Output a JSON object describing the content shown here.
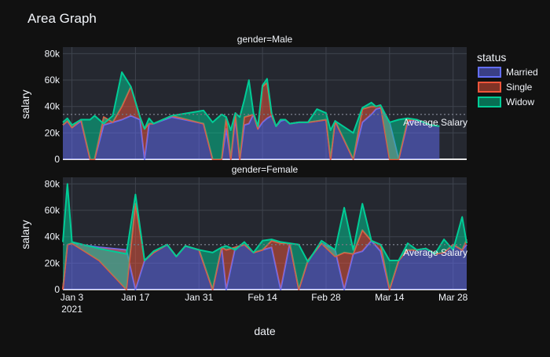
{
  "chart_data": {
    "type": "area",
    "title": "Area Graph",
    "xlabel": "date",
    "ylabel": "salary",
    "facets": [
      "gender=Male",
      "gender=Female"
    ],
    "legend_title": "status",
    "legend_position": "right",
    "grid": true,
    "ylim": [
      0,
      85000
    ],
    "xlim": [
      "2021-01-01",
      "2021-03-31"
    ],
    "x_tick_labels": [
      "Jan 3\n2021",
      "Jan 17",
      "Jan 31",
      "Feb 14",
      "Feb 28",
      "Mar 14",
      "Mar 28"
    ],
    "x_tick_dates": [
      "2021-01-03",
      "2021-01-17",
      "2021-01-31",
      "2021-02-14",
      "2021-02-28",
      "2021-03-14",
      "2021-03-28"
    ],
    "y_tick_values": [
      0,
      20000,
      40000,
      60000,
      80000
    ],
    "y_tick_labels": [
      "0",
      "20k",
      "40k",
      "60k",
      "80k"
    ],
    "reference_line": {
      "label": "Average Salary",
      "value": 34000
    },
    "series": [
      {
        "name": "Married",
        "color": "#636efa"
      },
      {
        "name": "Single",
        "color": "#ef553b"
      },
      {
        "name": "Widow",
        "color": "#00cc96"
      }
    ],
    "panels": [
      {
        "facet": "gender=Male",
        "x": [
          "2021-01-01",
          "2021-01-02",
          "2021-01-03",
          "2021-01-05",
          "2021-01-07",
          "2021-01-08",
          "2021-01-10",
          "2021-01-12",
          "2021-01-14",
          "2021-01-16",
          "2021-01-18",
          "2021-01-19",
          "2021-01-20",
          "2021-01-21",
          "2021-01-25",
          "2021-02-01",
          "2021-02-03",
          "2021-02-05",
          "2021-02-06",
          "2021-02-07",
          "2021-02-08",
          "2021-02-09",
          "2021-02-10",
          "2021-02-11",
          "2021-02-12",
          "2021-02-13",
          "2021-02-14",
          "2021-02-15",
          "2021-02-16",
          "2021-02-17",
          "2021-02-18",
          "2021-02-19",
          "2021-02-20",
          "2021-02-22",
          "2021-02-24",
          "2021-02-26",
          "2021-02-28",
          "2021-03-01",
          "2021-03-02",
          "2021-03-06",
          "2021-03-08",
          "2021-03-10",
          "2021-03-11",
          "2021-03-12",
          "2021-03-14",
          "2021-03-16",
          "2021-03-18",
          "2021-03-20",
          "2021-03-23",
          "2021-03-25"
        ],
        "married": [
          26000,
          29000,
          24000,
          29000,
          0,
          0,
          26000,
          28000,
          30000,
          33000,
          30000,
          0,
          27000,
          27000,
          32000,
          27000,
          0,
          0,
          23000,
          0,
          31000,
          0,
          26000,
          27000,
          34000,
          23000,
          28000,
          31000,
          33000,
          25000,
          29000,
          30000,
          27000,
          28000,
          28000,
          29000,
          30000,
          0,
          29000,
          0,
          28000,
          34000,
          38000,
          39000,
          28000,
          0,
          28000,
          30000,
          26000,
          25000
        ],
        "single": [
          26000,
          29000,
          24000,
          30000,
          0,
          0,
          32000,
          28000,
          40000,
          55000,
          32000,
          23000,
          27000,
          27000,
          33000,
          27000,
          0,
          0,
          32000,
          0,
          35000,
          0,
          32000,
          33000,
          34000,
          23000,
          55000,
          58000,
          33000,
          25000,
          30000,
          30000,
          27000,
          28000,
          28000,
          29000,
          30000,
          0,
          29000,
          0,
          38000,
          40000,
          40000,
          41000,
          0,
          0,
          30000,
          30000,
          26000,
          25000
        ],
        "widow": [
          28000,
          31000,
          26000,
          30000,
          30000,
          33000,
          27000,
          33000,
          66000,
          55000,
          32000,
          23000,
          31000,
          27000,
          33000,
          37000,
          28000,
          34000,
          32000,
          22000,
          35000,
          32000,
          45000,
          60000,
          35000,
          25000,
          56000,
          61000,
          35000,
          25000,
          30000,
          30000,
          27000,
          28000,
          28000,
          38000,
          35000,
          22000,
          29000,
          20000,
          39000,
          43000,
          40000,
          41000,
          28000,
          30000,
          31000,
          30000,
          26000,
          25000
        ]
      },
      {
        "facet": "gender=Female",
        "x": [
          "2021-01-01",
          "2021-01-02",
          "2021-01-03",
          "2021-01-09",
          "2021-01-15",
          "2021-01-17",
          "2021-01-19",
          "2021-01-21",
          "2021-01-24",
          "2021-01-26",
          "2021-01-28",
          "2021-01-31",
          "2021-02-03",
          "2021-02-05",
          "2021-02-06",
          "2021-02-08",
          "2021-02-10",
          "2021-02-12",
          "2021-02-14",
          "2021-02-16",
          "2021-02-18",
          "2021-02-20",
          "2021-02-22",
          "2021-02-24",
          "2021-02-27",
          "2021-03-02",
          "2021-03-04",
          "2021-03-06",
          "2021-03-08",
          "2021-03-10",
          "2021-03-12",
          "2021-03-14",
          "2021-03-16",
          "2021-03-18",
          "2021-03-20",
          "2021-03-22",
          "2021-03-24",
          "2021-03-26",
          "2021-03-28",
          "2021-03-30",
          "2021-03-31"
        ],
        "married": [
          0,
          34000,
          35000,
          32000,
          30000,
          0,
          22000,
          28000,
          34000,
          25000,
          33000,
          30000,
          0,
          32000,
          0,
          32000,
          34000,
          28000,
          30000,
          32000,
          0,
          35000,
          0,
          22000,
          35000,
          30000,
          0,
          27000,
          29000,
          37000,
          29000,
          0,
          22000,
          30000,
          30000,
          31000,
          27000,
          28000,
          34000,
          30000,
          34000
        ],
        "single": [
          0,
          34000,
          35000,
          22000,
          0,
          65000,
          22000,
          28000,
          34000,
          25000,
          33000,
          30000,
          0,
          32000,
          30000,
          32000,
          34000,
          28000,
          30000,
          37000,
          35000,
          35000,
          0,
          22000,
          35000,
          25000,
          28000,
          27000,
          45000,
          37000,
          34000,
          0,
          22000,
          30000,
          30000,
          31000,
          27000,
          28000,
          34000,
          30000,
          38000
        ],
        "widow": [
          36000,
          80000,
          36000,
          31000,
          27000,
          72000,
          22000,
          29000,
          34000,
          25000,
          33000,
          30000,
          28000,
          32000,
          33000,
          30000,
          36000,
          28000,
          37000,
          38000,
          36000,
          35000,
          34000,
          21000,
          37000,
          30000,
          62000,
          30000,
          65000,
          37000,
          34000,
          22000,
          22000,
          35000,
          30000,
          31000,
          27000,
          38000,
          30000,
          55000,
          35000
        ]
      }
    ]
  }
}
